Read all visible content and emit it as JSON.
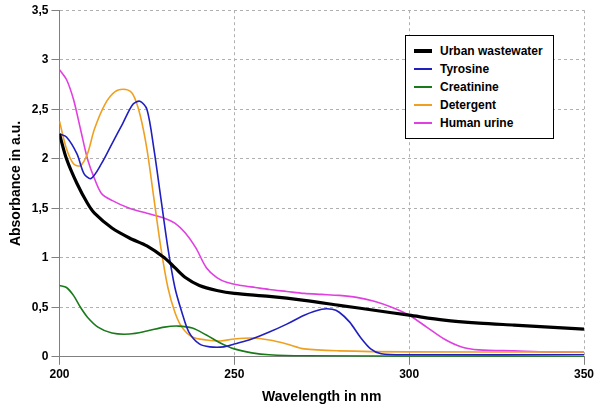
{
  "chart_data": {
    "type": "line",
    "x_label": "Wavelength in nm",
    "y_label": "Absorbance in a.u.",
    "xlim": [
      200,
      350
    ],
    "xticks": [
      200,
      250,
      300,
      350
    ],
    "ylim": [
      0,
      3.5
    ],
    "yticks": [
      0,
      {
        "value": 0.5,
        "label": "0,5"
      },
      1,
      {
        "value": 1.5,
        "label": "1,5"
      },
      2,
      {
        "value": 2.5,
        "label": "2,5"
      },
      3,
      {
        "value": 3.5,
        "label": "3,5"
      }
    ],
    "grid": true,
    "legend": "top-right",
    "series": [
      {
        "name": "Urban wastewater",
        "color": "#000000",
        "x": [
          200,
          202,
          205,
          208,
          210,
          215,
          220,
          225,
          230,
          233,
          236,
          240,
          245,
          250,
          260,
          270,
          280,
          290,
          300,
          310,
          320,
          330,
          340,
          350
        ],
        "values": [
          2.25,
          2.0,
          1.75,
          1.55,
          1.45,
          1.3,
          1.2,
          1.12,
          1.0,
          0.9,
          0.8,
          0.72,
          0.67,
          0.64,
          0.61,
          0.57,
          0.52,
          0.47,
          0.42,
          0.37,
          0.34,
          0.32,
          0.3,
          0.28
        ]
      },
      {
        "name": "Tyrosine",
        "color": "#2020c0",
        "x": [
          200,
          202,
          205,
          207,
          209,
          212,
          215,
          218,
          221,
          223,
          225,
          227,
          229,
          231,
          233,
          235,
          237,
          240,
          243,
          247,
          250,
          255,
          260,
          265,
          270,
          275,
          278,
          280,
          283,
          286,
          289,
          292,
          300,
          350
        ],
        "values": [
          2.25,
          2.22,
          2.05,
          1.85,
          1.8,
          1.95,
          2.15,
          2.35,
          2.55,
          2.58,
          2.5,
          2.1,
          1.6,
          1.1,
          0.7,
          0.45,
          0.25,
          0.13,
          0.1,
          0.1,
          0.13,
          0.18,
          0.25,
          0.33,
          0.42,
          0.48,
          0.48,
          0.45,
          0.35,
          0.2,
          0.08,
          0.03,
          0.02,
          0.02
        ]
      },
      {
        "name": "Creatinine",
        "color": "#1a7a1a",
        "x": [
          200,
          202,
          204,
          206,
          208,
          211,
          215,
          220,
          225,
          230,
          234,
          238,
          242,
          246,
          250,
          255,
          260,
          270,
          350
        ],
        "values": [
          0.72,
          0.7,
          0.62,
          0.5,
          0.4,
          0.3,
          0.24,
          0.23,
          0.26,
          0.3,
          0.31,
          0.29,
          0.22,
          0.14,
          0.08,
          0.04,
          0.02,
          0.01,
          0.0
        ]
      },
      {
        "name": "Detergent",
        "color": "#f0a020",
        "x": [
          200,
          202,
          204,
          206,
          208,
          210,
          213,
          216,
          219,
          221,
          223,
          225,
          227,
          229,
          231,
          233,
          235,
          238,
          242,
          246,
          250,
          255,
          260,
          265,
          270,
          280,
          300,
          350
        ],
        "values": [
          2.38,
          2.1,
          1.95,
          1.93,
          2.05,
          2.3,
          2.55,
          2.68,
          2.7,
          2.65,
          2.45,
          2.1,
          1.6,
          1.1,
          0.7,
          0.45,
          0.3,
          0.2,
          0.17,
          0.16,
          0.18,
          0.19,
          0.17,
          0.13,
          0.08,
          0.06,
          0.05,
          0.05
        ]
      },
      {
        "name": "Human urine",
        "color": "#e040e0",
        "x": [
          200,
          202,
          204,
          206,
          208,
          210,
          212,
          215,
          220,
          225,
          230,
          233,
          236,
          239,
          242,
          245,
          248,
          252,
          256,
          260,
          265,
          270,
          275,
          280,
          285,
          290,
          295,
          300,
          305,
          310,
          315,
          320,
          330,
          340,
          350
        ],
        "values": [
          2.9,
          2.8,
          2.6,
          2.3,
          2.0,
          1.8,
          1.65,
          1.58,
          1.5,
          1.45,
          1.4,
          1.35,
          1.25,
          1.1,
          0.9,
          0.8,
          0.75,
          0.72,
          0.7,
          0.68,
          0.66,
          0.64,
          0.63,
          0.62,
          0.6,
          0.56,
          0.5,
          0.42,
          0.3,
          0.18,
          0.1,
          0.07,
          0.06,
          0.05,
          0.05
        ]
      }
    ]
  }
}
